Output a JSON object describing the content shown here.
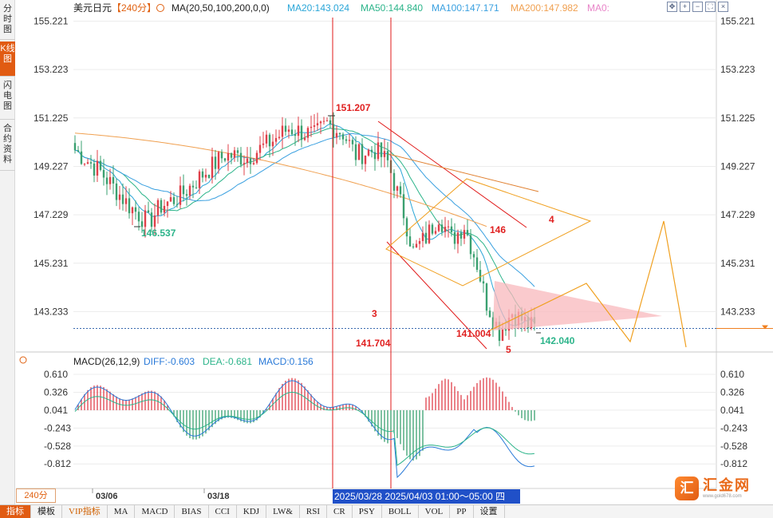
{
  "sidebar": {
    "tabs": [
      {
        "label": "分时图",
        "active": false
      },
      {
        "label": "K线图",
        "active": true
      },
      {
        "label": "闪电图",
        "active": false
      },
      {
        "label": "合约资料",
        "active": false
      }
    ]
  },
  "header": {
    "symbol": "美元日元",
    "period": "【240分】",
    "ma_label": "MA(20,50,100,200,0,0)",
    "ma_values": [
      {
        "text": "MA20:143.024",
        "color": "#2aa6d8"
      },
      {
        "text": "MA50:144.840",
        "color": "#2cb48a"
      },
      {
        "text": "MA100:147.171",
        "color": "#3aa0e0"
      },
      {
        "text": "MA200:147.982",
        "color": "#f0a050"
      },
      {
        "text": "MA0:",
        "color": "#e884c8"
      }
    ],
    "top_icons": [
      "move-icon",
      "zoom-in-icon",
      "zoom-out-icon",
      "fullscreen-icon",
      "close-icon"
    ]
  },
  "macd_header": {
    "label": "MACD(26,12,9)",
    "diff": "DIFF:-0.603",
    "dea": "DEA:-0.681",
    "macd": "MACD:0.156"
  },
  "period_tag": "240分",
  "date_box": "2025/03/28  2025/04/03 01:00～05:00 四",
  "bottom_bar": [
    "指标",
    "模板",
    "VIP指标",
    "MA",
    "MACD",
    "BIAS",
    "CCI",
    "KDJ",
    "LW&",
    "RSI",
    "CR",
    "PSY",
    "BOLL",
    "VOL",
    "PP",
    "设置"
  ],
  "logo": {
    "mark": "汇",
    "name": "汇金网",
    "url": "www.gold678.com"
  },
  "chart_data": {
    "type": "candlestick",
    "price_axis": {
      "ticks": [
        "155.221",
        "153.223",
        "151.225",
        "149.227",
        "147.229",
        "145.231",
        "143.233"
      ],
      "range": [
        141.6,
        155.5
      ]
    },
    "time_axis": {
      "labels": [
        "03/06",
        "03/18"
      ]
    },
    "current_price": 142.54,
    "annotations": [
      {
        "text": "151.207",
        "kind": "high",
        "color": "#e02020"
      },
      {
        "text": "146.537",
        "kind": "low",
        "color": "#2cb48a"
      },
      {
        "text": "141.004",
        "kind": "low",
        "color": "#e02020"
      },
      {
        "text": "142.040",
        "kind": "low",
        "color": "#2cb48a"
      },
      {
        "text": "141.704",
        "kind": "label",
        "color": "#e02020"
      },
      {
        "text": "146",
        "kind": "label",
        "color": "#e02020"
      },
      {
        "text": "3",
        "kind": "wave",
        "color": "#e02020"
      },
      {
        "text": "4",
        "kind": "wave",
        "color": "#e02020"
      },
      {
        "text": "5",
        "kind": "wave",
        "color": "#e02020"
      }
    ],
    "macd_axis": {
      "ticks": [
        "0.610",
        "0.326",
        "0.041",
        "-0.243",
        "-0.528",
        "-0.812"
      ],
      "range": [
        -1.05,
        0.75
      ]
    }
  }
}
